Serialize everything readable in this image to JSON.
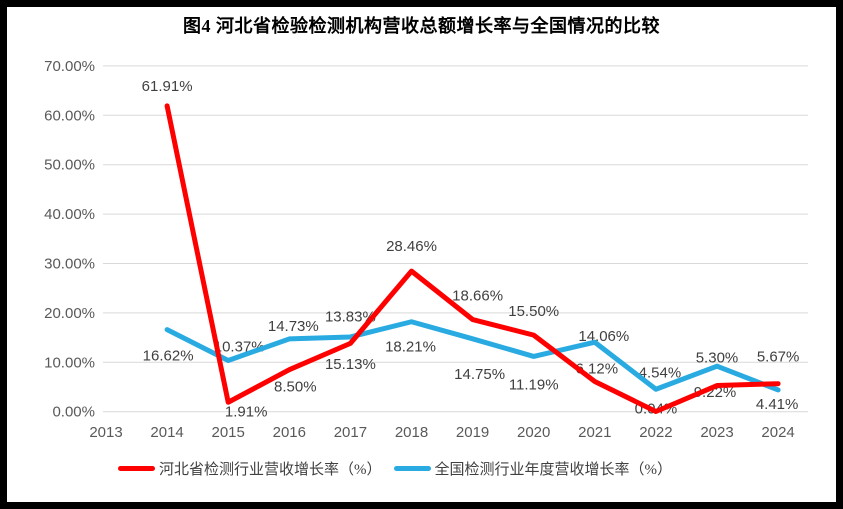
{
  "frame": {
    "border_color": "#000000",
    "background": "#FFFFFF"
  },
  "chart_data": {
    "type": "line",
    "title": "图4 河北省检验检测机构营收总额增长率与全国情况的比较",
    "categories": [
      "2013",
      "2014",
      "2015",
      "2016",
      "2017",
      "2018",
      "2019",
      "2020",
      "2021",
      "2022",
      "2023",
      "2024"
    ],
    "series": [
      {
        "name": "河北省检测行业营收增长率（%）",
        "color": "#FF0000",
        "values": [
          null,
          61.91,
          1.91,
          8.5,
          13.83,
          28.46,
          18.66,
          15.5,
          6.12,
          0.04,
          5.3,
          5.67
        ]
      },
      {
        "name": "全国检测行业年度营收增长率（%）",
        "color": "#29ABE2",
        "values": [
          null,
          16.62,
          10.37,
          14.73,
          15.13,
          18.21,
          14.75,
          11.19,
          14.06,
          4.54,
          9.22,
          4.41
        ]
      }
    ],
    "ylim": [
      0,
      70
    ],
    "ytick_step": 10,
    "ytick_labels": [
      "0.00%",
      "10.00%",
      "20.00%",
      "30.00%",
      "40.00%",
      "50.00%",
      "60.00%",
      "70.00%"
    ],
    "grid": true,
    "gridline_color": "#D9D9D9",
    "tick_color": "#595959",
    "data_label_color": "#404040",
    "line_width": 5,
    "legend_position": "bottom",
    "label_offsets": [
      [
        null,
        [
          0,
          -20
        ],
        [
          18,
          9
        ],
        [
          6,
          17
        ],
        [
          0,
          -27
        ],
        [
          0,
          -25
        ],
        [
          5,
          -24
        ],
        [
          0,
          -24
        ],
        [
          2,
          -13
        ],
        [
          0,
          -3
        ],
        [
          0,
          -28
        ],
        [
          0,
          -27
        ]
      ],
      [
        null,
        [
          1,
          26
        ],
        [
          11,
          -14
        ],
        [
          4,
          -13
        ],
        [
          0,
          27
        ],
        [
          -1,
          25
        ],
        [
          7,
          35
        ],
        [
          0,
          28
        ],
        [
          9,
          -6
        ],
        [
          4,
          -17
        ],
        [
          -2,
          26
        ],
        [
          -1,
          14
        ]
      ]
    ]
  }
}
